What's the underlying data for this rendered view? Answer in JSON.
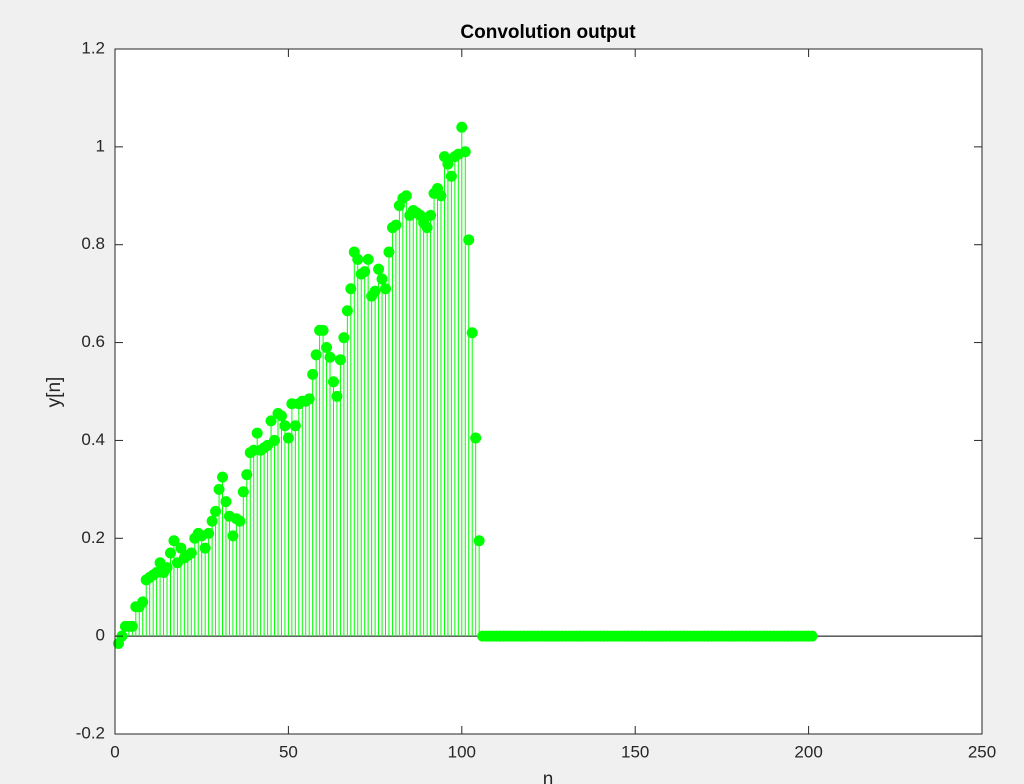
{
  "chart_data": {
    "type": "stem",
    "title": "Convolution output",
    "xlabel": "n",
    "ylabel": "y[n]",
    "color": "#00ff00",
    "x": [
      1,
      2,
      3,
      4,
      5,
      6,
      7,
      8,
      9,
      10,
      11,
      12,
      13,
      14,
      15,
      16,
      17,
      18,
      19,
      20,
      21,
      22,
      23,
      24,
      25,
      26,
      27,
      28,
      29,
      30,
      31,
      32,
      33,
      34,
      35,
      36,
      37,
      38,
      39,
      40,
      41,
      42,
      43,
      44,
      45,
      46,
      47,
      48,
      49,
      50,
      51,
      52,
      53,
      54,
      55,
      56,
      57,
      58,
      59,
      60,
      61,
      62,
      63,
      64,
      65,
      66,
      67,
      68,
      69,
      70,
      71,
      72,
      73,
      74,
      75,
      76,
      77,
      78,
      79,
      80,
      81,
      82,
      83,
      84,
      85,
      86,
      87,
      88,
      89,
      90,
      91,
      92,
      93,
      94,
      95,
      96,
      97,
      98,
      99,
      100,
      101,
      102,
      103,
      104,
      105,
      106,
      107,
      108,
      109,
      110,
      111,
      112,
      113,
      114,
      115,
      116,
      117,
      118,
      119,
      120,
      121,
      122,
      123,
      124,
      125,
      126,
      127,
      128,
      129,
      130,
      131,
      132,
      133,
      134,
      135,
      136,
      137,
      138,
      139,
      140,
      141,
      142,
      143,
      144,
      145,
      146,
      147,
      148,
      149,
      150,
      151,
      152,
      153,
      154,
      155,
      156,
      157,
      158,
      159,
      160,
      161,
      162,
      163,
      164,
      165,
      166,
      167,
      168,
      169,
      170,
      171,
      172,
      173,
      174,
      175,
      176,
      177,
      178,
      179,
      180,
      181,
      182,
      183,
      184,
      185,
      186,
      187,
      188,
      189,
      190,
      191,
      192,
      193,
      194,
      195,
      196,
      197,
      198,
      199,
      200,
      201
    ],
    "values": [
      -0.015,
      0.0,
      0.02,
      0.02,
      0.02,
      0.06,
      0.06,
      0.07,
      0.115,
      0.12,
      0.125,
      0.13,
      0.15,
      0.13,
      0.14,
      0.17,
      0.195,
      0.15,
      0.18,
      0.16,
      0.165,
      0.17,
      0.2,
      0.21,
      0.205,
      0.18,
      0.21,
      0.235,
      0.255,
      0.3,
      0.325,
      0.275,
      0.245,
      0.205,
      0.24,
      0.235,
      0.295,
      0.33,
      0.375,
      0.38,
      0.415,
      0.38,
      0.385,
      0.39,
      0.44,
      0.4,
      0.455,
      0.45,
      0.43,
      0.405,
      0.475,
      0.43,
      0.475,
      0.48,
      0.48,
      0.485,
      0.535,
      0.575,
      0.625,
      0.625,
      0.59,
      0.57,
      0.52,
      0.49,
      0.565,
      0.61,
      0.665,
      0.71,
      0.785,
      0.77,
      0.74,
      0.745,
      0.77,
      0.695,
      0.705,
      0.75,
      0.73,
      0.71,
      0.785,
      0.835,
      0.84,
      0.88,
      0.895,
      0.9,
      0.86,
      0.87,
      0.865,
      0.86,
      0.845,
      0.835,
      0.86,
      0.905,
      0.915,
      0.9,
      0.98,
      0.965,
      0.94,
      0.98,
      0.985,
      1.04,
      0.99,
      0.81,
      0.62,
      0.405,
      0.195,
      0,
      0,
      0,
      0,
      0,
      0,
      0,
      0,
      0,
      0,
      0,
      0,
      0,
      0,
      0,
      0,
      0,
      0,
      0,
      0,
      0,
      0,
      0,
      0,
      0,
      0,
      0,
      0,
      0,
      0,
      0,
      0,
      0,
      0,
      0,
      0,
      0,
      0,
      0,
      0,
      0,
      0,
      0,
      0,
      0,
      0,
      0,
      0,
      0,
      0,
      0,
      0,
      0,
      0,
      0,
      0,
      0,
      0,
      0,
      0,
      0,
      0,
      0,
      0,
      0,
      0,
      0,
      0,
      0,
      0,
      0,
      0,
      0,
      0,
      0,
      0,
      0,
      0,
      0,
      0,
      0,
      0,
      0,
      0,
      0,
      0,
      0,
      0,
      0,
      0,
      0,
      0,
      0,
      0,
      0,
      0
    ],
    "xlim": [
      0,
      250
    ],
    "xticks": [
      0,
      50,
      100,
      150,
      200,
      250
    ],
    "ylim": [
      -0.2,
      1.2
    ],
    "yticks": [
      -0.2,
      0,
      0.2,
      0.4,
      0.6,
      0.8,
      1,
      1.2
    ]
  }
}
